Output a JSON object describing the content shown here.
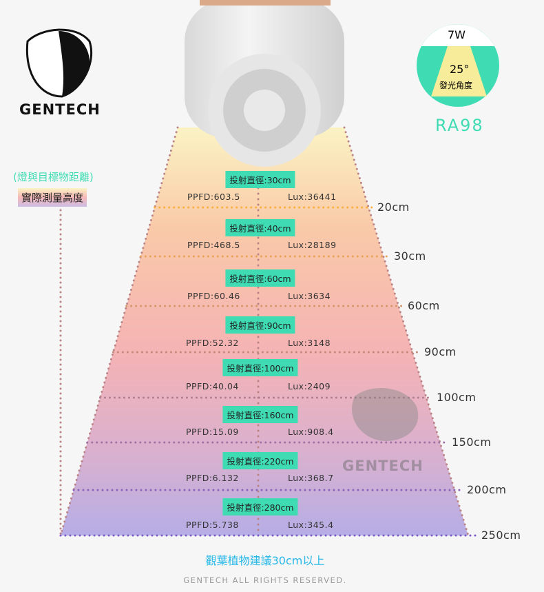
{
  "brand": {
    "name": "GENTECH",
    "watermark": "GENTECH"
  },
  "spec": {
    "power": "7W",
    "angle": "25°",
    "angle_label": "發光角度",
    "cri": "RA98"
  },
  "left_labels": {
    "note": "(燈與目標物距離)",
    "title": "實際測量高度"
  },
  "rows": [
    {
      "beam": "投射直徑:30cm",
      "ppfd": "PPFD:603.5",
      "lux": "Lux:36441",
      "distance": "20cm"
    },
    {
      "beam": "投射直徑:40cm",
      "ppfd": "PPFD:468.5",
      "lux": "Lux:28189",
      "distance": "30cm"
    },
    {
      "beam": "投射直徑:60cm",
      "ppfd": "PPFD:60.46",
      "lux": "Lux:3634",
      "distance": "60cm"
    },
    {
      "beam": "投射直徑:90cm",
      "ppfd": "PPFD:52.32",
      "lux": "Lux:3148",
      "distance": "90cm"
    },
    {
      "beam": "投射直徑:100cm",
      "ppfd": "PPFD:40.04",
      "lux": "Lux:2409",
      "distance": "100cm"
    },
    {
      "beam": "投射直徑:160cm",
      "ppfd": "PPFD:15.09",
      "lux": "Lux:908.4",
      "distance": "150cm"
    },
    {
      "beam": "投射直徑:220cm",
      "ppfd": "PPFD:6.132",
      "lux": "Lux:368.7",
      "distance": "200cm"
    },
    {
      "beam": "投射直徑:280cm",
      "ppfd": "PPFD:5.738",
      "lux": "Lux:345.4",
      "distance": "250cm"
    }
  ],
  "footer": {
    "recommendation": "觀葉植物建議30cm以上",
    "copyright": "GENTECH ALL RIGHTS RESERVED."
  },
  "colors": {
    "accent": "#3fdcb4",
    "badge_yellow": "#f7ec9a",
    "recommend": "#27b8e8",
    "line_top": "#f9b042",
    "line_bottom": "#7a58cc"
  }
}
